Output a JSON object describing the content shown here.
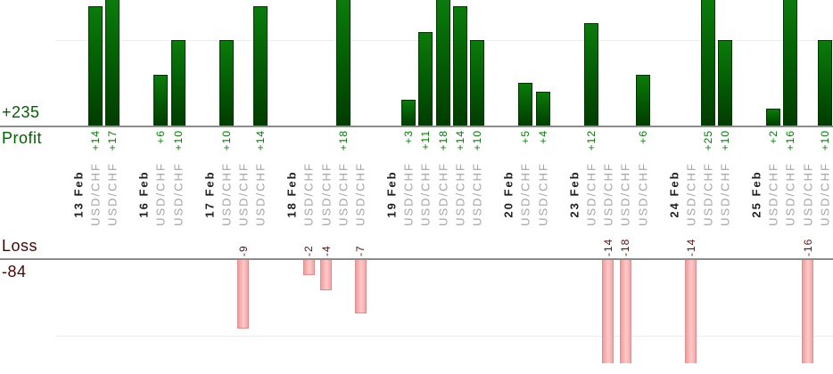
{
  "colors": {
    "profit_side_text": "#035f03",
    "profit_value_text": "#077a07",
    "profit_bar": "#046004",
    "loss_side_text": "#420707",
    "loss_value_text": "#571414",
    "loss_bar": "#ffc9c9",
    "loss_bar_border": "#db8f8f",
    "axis_line": "#8c8c8c",
    "gridline": "#ececec",
    "date_text": "#1f1f1f",
    "symbol_text": "#a3a3a3"
  },
  "chart_data": {
    "type": "bar",
    "profit_total": 235,
    "loss_total": -84,
    "profit_total_label": "+235",
    "profit_axis_label": "Profit",
    "loss_axis_label": "Loss",
    "loss_total_label": "-84",
    "gridline_unit": 10,
    "groups": [
      {
        "date": "13 Feb",
        "trades": [
          {
            "symbol": "USD/CHF",
            "value": 14,
            "label": "+14"
          },
          {
            "symbol": "USD/CHF",
            "value": 17,
            "label": "+17"
          }
        ]
      },
      {
        "date": "16 Feb",
        "trades": [
          {
            "symbol": "USD/CHF",
            "value": 6,
            "label": "+6"
          },
          {
            "symbol": "USD/CHF",
            "value": 10,
            "label": "+10"
          }
        ]
      },
      {
        "date": "17 Feb",
        "trades": [
          {
            "symbol": "USD/CHF",
            "value": 10,
            "label": "+10"
          },
          {
            "symbol": "USD/CHF",
            "value": -9,
            "label": "-9"
          },
          {
            "symbol": "USD/CHF",
            "value": 14,
            "label": "+14"
          }
        ]
      },
      {
        "date": "18 Feb",
        "trades": [
          {
            "symbol": "USD/CHF",
            "value": -2,
            "label": "-2"
          },
          {
            "symbol": "USD/CHF",
            "value": -4,
            "label": "-4"
          },
          {
            "symbol": "USD/CHF",
            "value": 18,
            "label": "+18"
          },
          {
            "symbol": "USD/CHF",
            "value": -7,
            "label": "-7"
          }
        ]
      },
      {
        "date": "19 Feb",
        "trades": [
          {
            "symbol": "USD/CHF",
            "value": 3,
            "label": "+3"
          },
          {
            "symbol": "USD/CHF",
            "value": 11,
            "label": "+11"
          },
          {
            "symbol": "USD/CHF",
            "value": 18,
            "label": "+18"
          },
          {
            "symbol": "USD/CHF",
            "value": 14,
            "label": "+14"
          },
          {
            "symbol": "USD/CHF",
            "value": 10,
            "label": "+10"
          }
        ]
      },
      {
        "date": "20 Feb",
        "trades": [
          {
            "symbol": "USD/CHF",
            "value": 5,
            "label": "+5"
          },
          {
            "symbol": "USD/CHF",
            "value": 4,
            "label": "+4"
          }
        ]
      },
      {
        "date": "23 Feb",
        "trades": [
          {
            "symbol": "USD/CHF",
            "value": 12,
            "label": "+12"
          },
          {
            "symbol": "USD/CHF",
            "value": -14,
            "label": "-14"
          },
          {
            "symbol": "USD/CHF",
            "value": -18,
            "label": "-18"
          },
          {
            "symbol": "USD/CHF",
            "value": 6,
            "label": "+6"
          }
        ]
      },
      {
        "date": "24 Feb",
        "trades": [
          {
            "symbol": "USD/CHF",
            "value": -14,
            "label": "-14"
          },
          {
            "symbol": "USD/CHF",
            "value": 25,
            "label": "+25"
          },
          {
            "symbol": "USD/CHF",
            "value": 10,
            "label": "+10"
          }
        ]
      },
      {
        "date": "25 Feb",
        "trades": [
          {
            "symbol": "USD/CHF",
            "value": 2,
            "label": "+2"
          },
          {
            "symbol": "USD/CHF",
            "value": 16,
            "label": "+16"
          },
          {
            "symbol": "USD/CHF",
            "value": -16,
            "label": "-16"
          },
          {
            "symbol": "USD/CHF",
            "value": 10,
            "label": "+10"
          }
        ]
      }
    ]
  }
}
